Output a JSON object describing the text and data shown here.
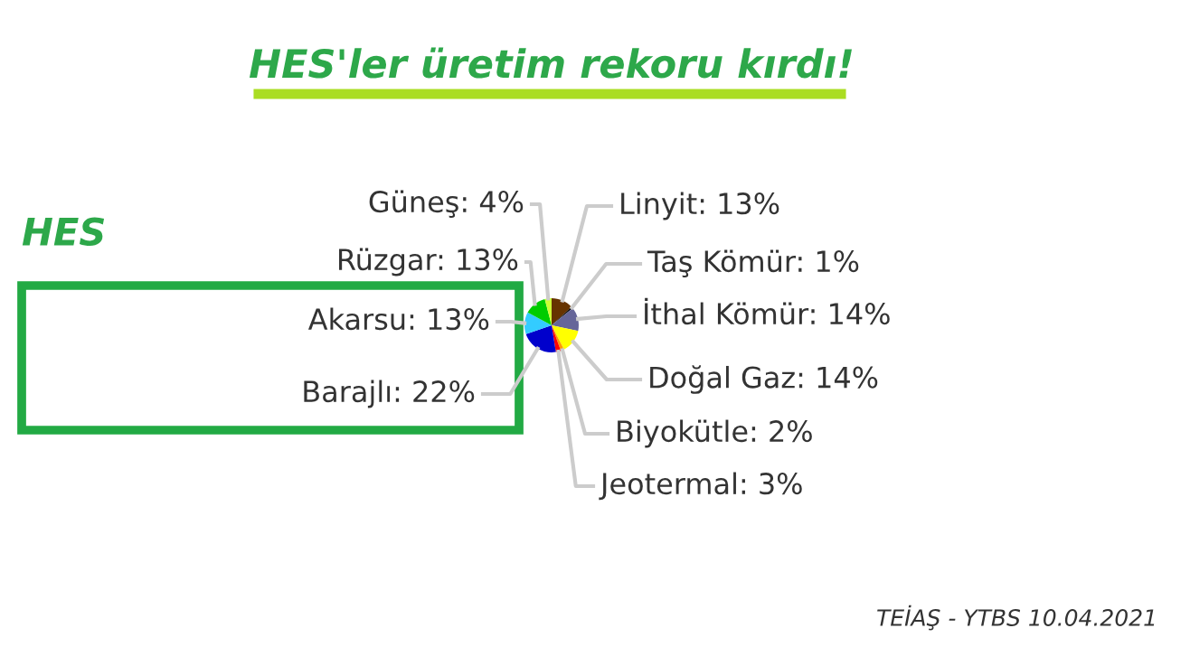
{
  "chart_data": {
    "type": "pie",
    "title": "HES'ler üretim rekoru kırdı!",
    "categories": [
      "Linyit",
      "Taş Kömür",
      "İthal Kömür",
      "Doğal Gaz",
      "Biyokütle",
      "Jeotermal",
      "Barajlı",
      "Akarsu",
      "Rüzgar",
      "Güneş"
    ],
    "values": [
      13,
      1,
      14,
      14,
      2,
      3,
      22,
      13,
      13,
      4
    ],
    "colors": [
      "#663300",
      "#000000",
      "#666699",
      "#ffff00",
      "#ff9900",
      "#ff0000",
      "#0000cc",
      "#33ccff",
      "#00cc00",
      "#ccff33"
    ],
    "value_labels": [
      "13%",
      "1%",
      "14%",
      "14%",
      "2%",
      "3%",
      "22%",
      "13%",
      "13%",
      "4%"
    ],
    "annotations": [
      "HES",
      "TEİAŞ - YTBS 10.04.2021"
    ]
  }
}
